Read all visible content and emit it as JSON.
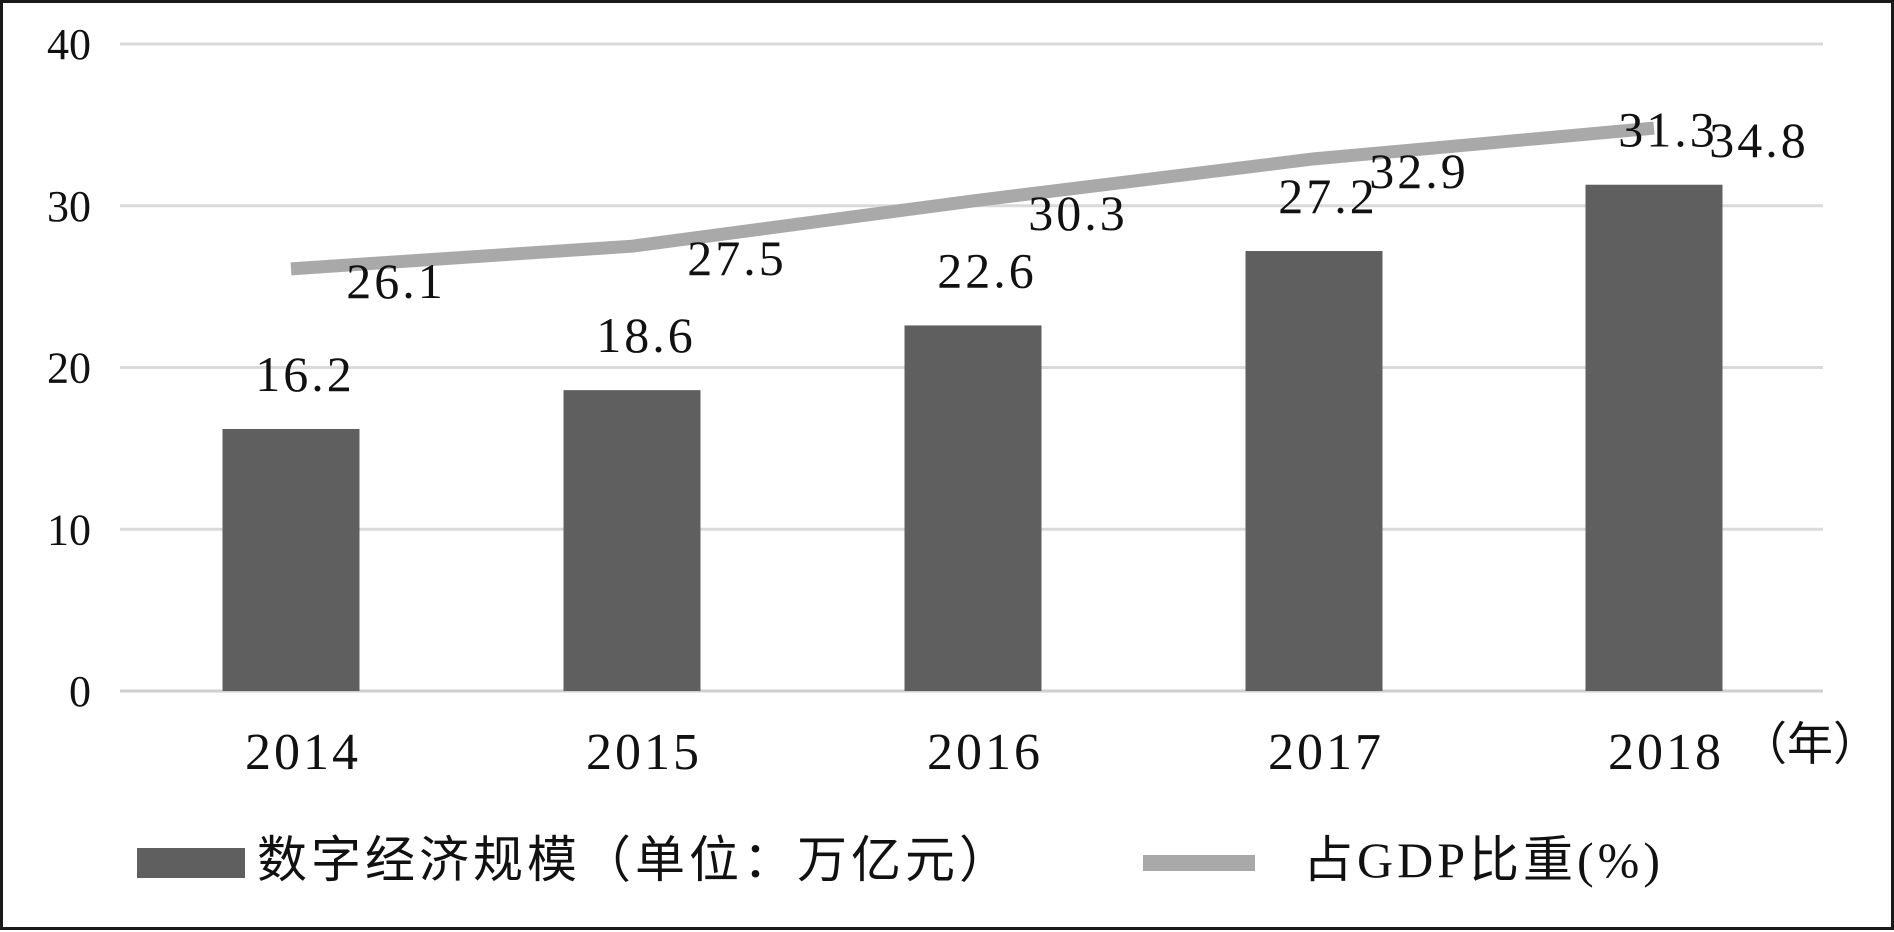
{
  "chart_data": {
    "type": "bar",
    "categories": [
      "2014",
      "2015",
      "2016",
      "2017",
      "2018"
    ],
    "x_unit": "（年）",
    "ylim": [
      0,
      40
    ],
    "yticks": [
      "0",
      "10",
      "20",
      "30",
      "40"
    ],
    "grid": true,
    "legend_position": "bottom",
    "series": [
      {
        "name": "数字经济规模（单位：万亿元）",
        "type": "bar",
        "values": [
          16.2,
          18.6,
          22.6,
          27.2,
          31.3
        ],
        "labels": [
          "16.2",
          "18.6",
          "22.6",
          "27.2",
          "31.3"
        ],
        "color": "#5f5f5f"
      },
      {
        "name": "占GDP比重(%)",
        "type": "line",
        "values": [
          26.1,
          27.5,
          30.3,
          32.9,
          34.8
        ],
        "labels": [
          "26.1",
          "27.5",
          "30.3",
          "32.9",
          "34.8"
        ],
        "color": "#a9a9a9"
      }
    ]
  }
}
